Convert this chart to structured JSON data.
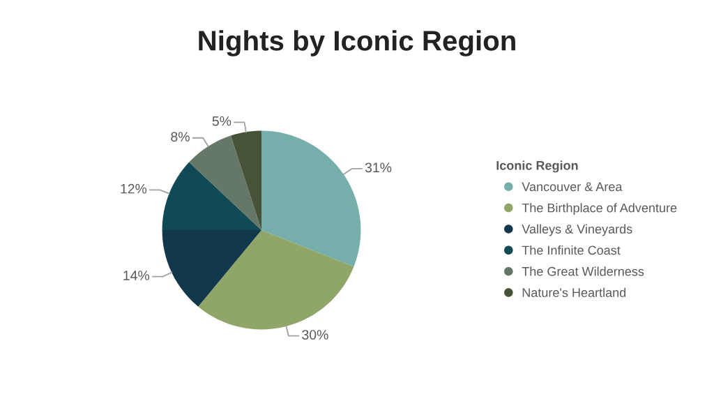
{
  "chart_data": {
    "type": "pie",
    "title": "Nights by Iconic Region",
    "legend_title": "Iconic Region",
    "legend": "right",
    "categories": [
      "Vancouver & Area",
      "The Birthplace of Adventure",
      "Valleys & Vineyards",
      "The Infinite Coast",
      "The Great Wilderness",
      "Nature's Heartland"
    ],
    "values": [
      31,
      30,
      14,
      12,
      8,
      5
    ],
    "colors": [
      "#76aeab",
      "#8fa668",
      "#11384b",
      "#0f4a55",
      "#657767",
      "#475337"
    ],
    "value_labels": [
      "31%",
      "30%",
      "14%",
      "12%",
      "8%",
      "5%"
    ]
  }
}
